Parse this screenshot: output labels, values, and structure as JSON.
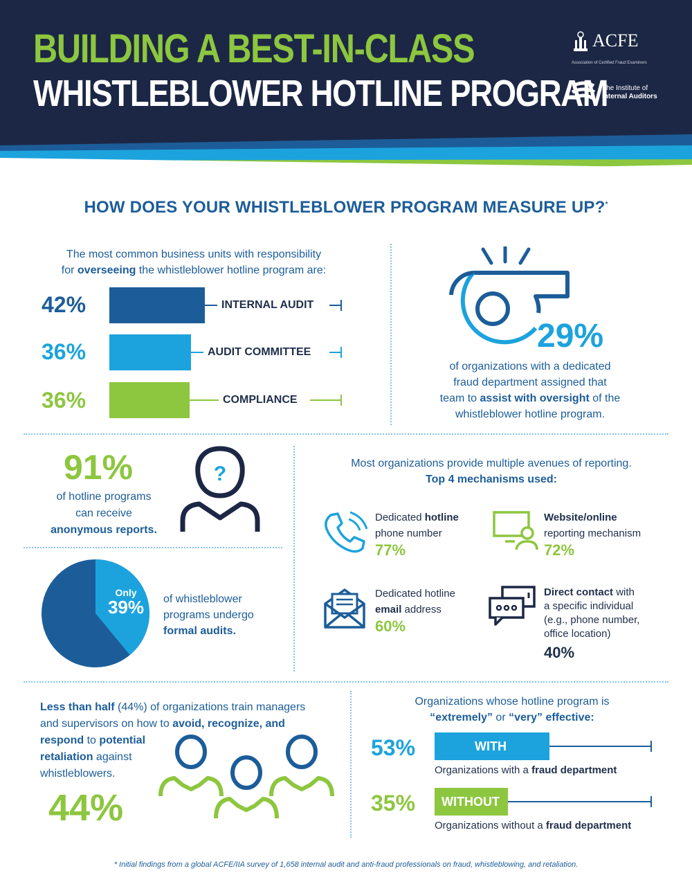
{
  "header": {
    "title_line1": "BUILDING A BEST-IN-CLASS",
    "title_line2": "WHISTLEBLOWER HOTLINE PROGRAM",
    "acfe_name": "ACFE",
    "acfe_sub": "Association of Certified Fraud Examiners",
    "iia_line1": "The Institute of",
    "iia_line2": "Internal Auditors"
  },
  "colors": {
    "navy": "#1c2745",
    "dark_blue": "#1c5d99",
    "bright_blue": "#1ca3dd",
    "green": "#8dc63f"
  },
  "heading": "HOW DOES YOUR WHISTLEBLOWER PROGRAM MEASURE UP?",
  "heading_mark": "*",
  "oversight": {
    "intro_1": "The most common business units with responsibility",
    "intro_2_pre": "for ",
    "intro_2_bold": "overseeing",
    "intro_2_post": " the whistleblower hotline program are:",
    "items": [
      {
        "pct_label": "42%",
        "label": "INTERNAL AUDIT",
        "value": 42
      },
      {
        "pct_label": "36%",
        "label": "AUDIT COMMITTEE",
        "value": 36
      },
      {
        "pct_label": "36%",
        "label": "COMPLIANCE",
        "value": 36
      }
    ]
  },
  "whistle": {
    "icon": "whistle-icon",
    "pct": "29%",
    "text_1": "of organizations with a dedicated",
    "text_2": "fraud department assigned that",
    "text_3_pre": "team to ",
    "text_3_bold": "assist with oversight",
    "text_3_post": " of the",
    "text_4": "whistleblower hotline program."
  },
  "anonymous": {
    "pct": "91%",
    "text_1": "of hotline programs",
    "text_2": "can receive",
    "text_3": "anonymous reports.",
    "icon": "person-question-icon"
  },
  "audits": {
    "only": "Only",
    "pct": "39%",
    "value": 39,
    "text_1": "of whistleblower",
    "text_2": "programs undergo",
    "text_3": "formal audits."
  },
  "mechanisms": {
    "intro_1": "Most organizations provide multiple avenues of reporting.",
    "intro_2": "Top 4 mechanisms used:",
    "items": [
      {
        "icon": "phone-icon",
        "line1_pre": "Dedicated ",
        "line1_bold": "hotline",
        "line2": "phone number",
        "line3": "",
        "line4": "",
        "pct": "77%"
      },
      {
        "icon": "computer-user-icon",
        "line1_pre": "",
        "line1_bold": "Website/online",
        "line2": "reporting mechanism",
        "line3": "",
        "line4": "",
        "pct": "72%"
      },
      {
        "icon": "email-icon",
        "line1_pre": "Dedicated hotline",
        "line1_bold": "",
        "line2_bold": "email",
        "line2": " address",
        "line3": "",
        "line4": "",
        "pct": "60%"
      },
      {
        "icon": "chat-bubbles-icon",
        "line1_pre": "",
        "line1_bold": "Direct contact",
        "line1_post": " with",
        "line2": "a specific individual",
        "line3": "(e.g., phone number,",
        "line4": "office location)",
        "pct": "40%"
      }
    ]
  },
  "training": {
    "line1_bold": "Less than half",
    "line1_post": " (44%) of organizations train managers",
    "line2_pre": "and supervisors on how to ",
    "line2_bold": "avoid, recognize, and",
    "line3_bold": "respond",
    "line3_mid": " to ",
    "line3_bold2": "potential",
    "line4_bold": "retaliation",
    "line4_post": " against",
    "line5": "whistleblowers.",
    "pct": "44%",
    "icon": "group-people-icon"
  },
  "effective": {
    "intro_1": "Organizations whose hotline program is",
    "intro_2a": "“extremely”",
    "intro_2b": " or ",
    "intro_2c": "“very”",
    "intro_2d": " effective:",
    "items": [
      {
        "pct": "53%",
        "value": 53,
        "bar_label": "WITH",
        "cap_pre": "Organizations with a ",
        "cap_bold": "fraud department"
      },
      {
        "pct": "35%",
        "value": 35,
        "bar_label": "WITHOUT",
        "cap_pre": "Organizations without a ",
        "cap_bold": "fraud department"
      }
    ]
  },
  "footnote": "* Initial findings from a global ACFE/IIA survey of 1,658 internal audit and anti-fraud professionals on fraud, whistleblowing, and retaliation."
}
